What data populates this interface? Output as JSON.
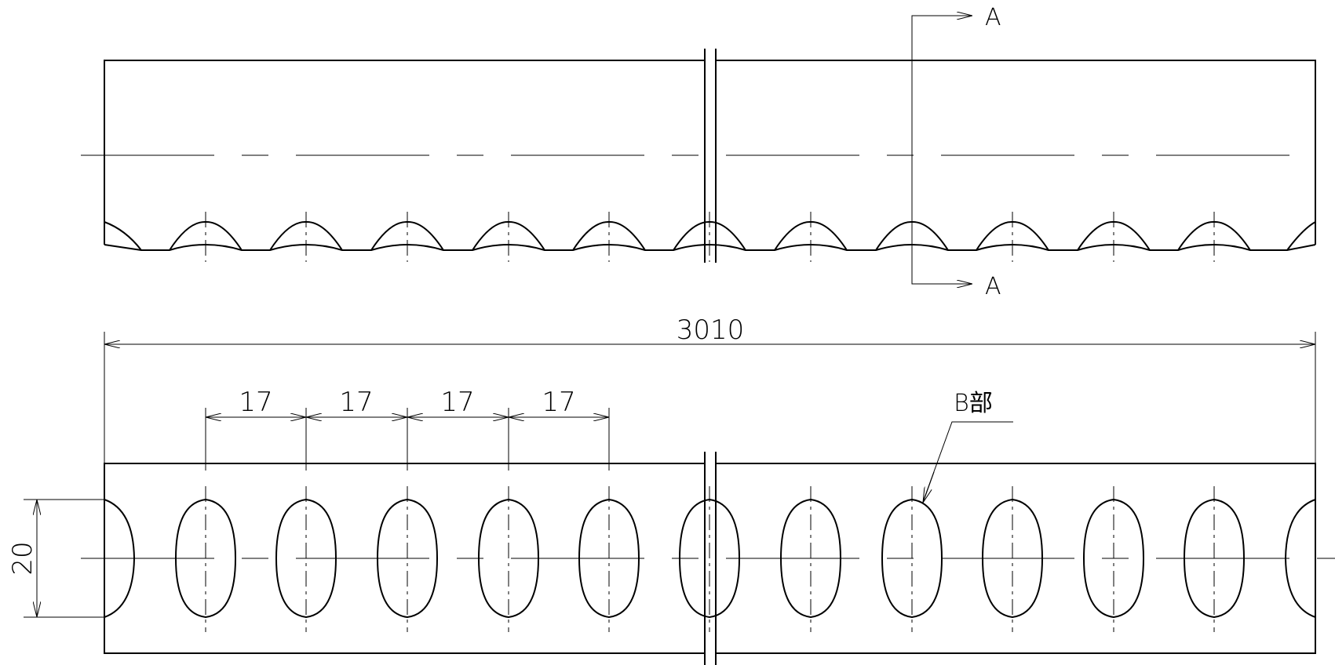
{
  "drawing": {
    "pitch_count_shown": 4,
    "overall_length": "3010",
    "pitch_labels": [
      "17",
      "17",
      "17",
      "17"
    ],
    "height_dim": "20",
    "section_label_top": "A",
    "section_label_bottom": "A",
    "detail_label": "B部"
  }
}
